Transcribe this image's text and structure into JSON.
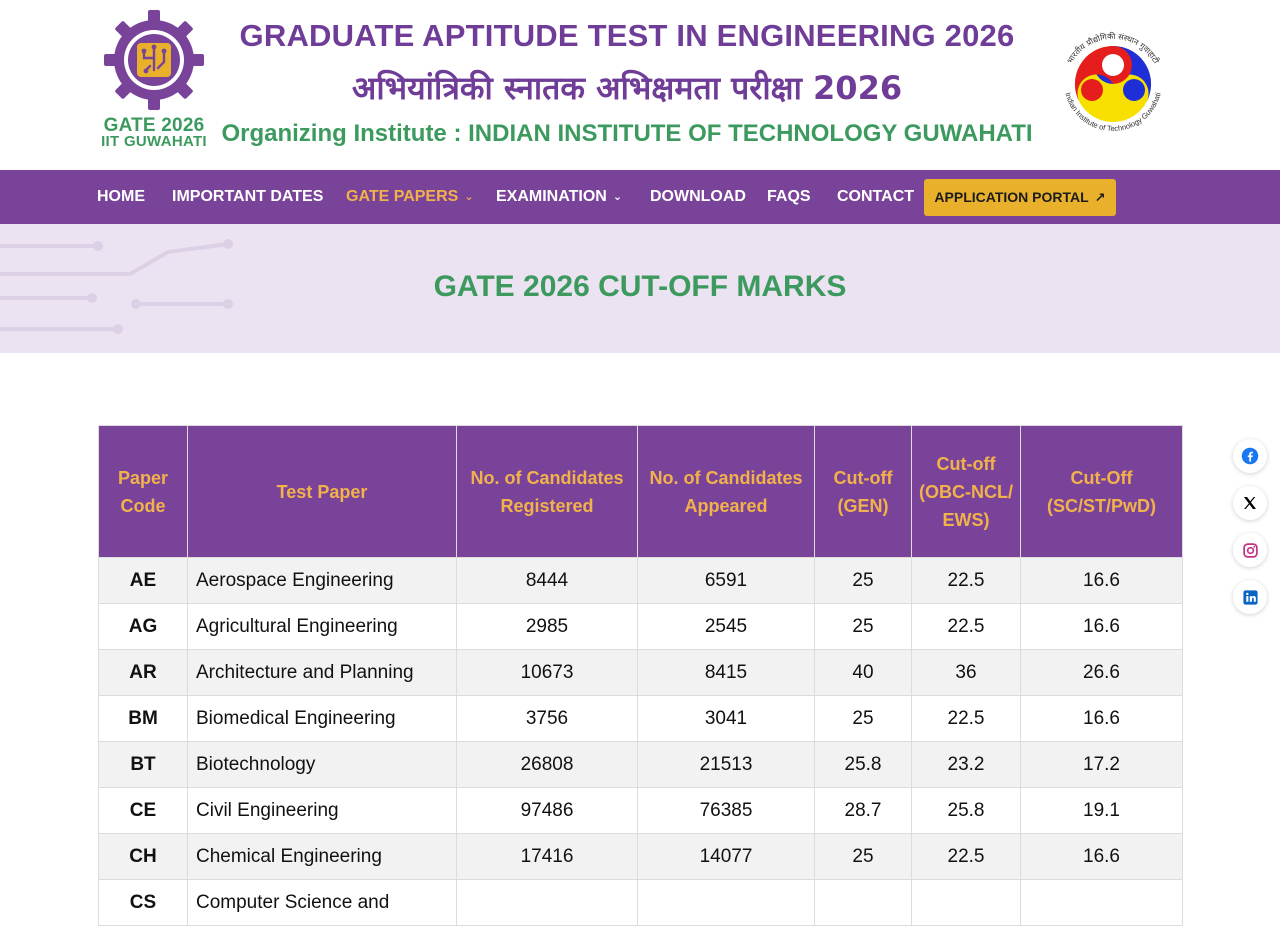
{
  "header": {
    "logo_line1": "GATE 2026",
    "logo_line2": "IIT GUWAHATI",
    "title_en": "GRADUATE APTITUDE TEST IN ENGINEERING 2026",
    "title_hi": "अभियांत्रिकी स्नातक अभिक्षमता परीक्षा 2026",
    "organizer": "Organizing Institute : INDIAN INSTITUTE OF TECHNOLOGY GUWAHATI",
    "iitg_logo_text_hi": "भारतीय प्रौद्योगिकी संस्थान गुवाहाटी",
    "iitg_logo_text_en": "Indian Institute of Technology Guwahati"
  },
  "nav": {
    "home": "HOME",
    "dates": "IMPORTANT DATES",
    "papers": "GATE PAPERS",
    "exam": "EXAMINATION",
    "download": "DOWNLOAD",
    "faqs": "FAQS",
    "contact": "CONTACT",
    "portal": "APPLICATION PORTAL"
  },
  "banner": {
    "title": "GATE 2026 CUT-OFF MARKS"
  },
  "table": {
    "headers": {
      "code": "Paper Code",
      "paper": "Test Paper",
      "registered": "No. of Candidates Registered",
      "appeared": "No. of Candidates Appeared",
      "gen": "Cut-off (GEN)",
      "obc": "Cut-off (OBC-NCL/ EWS)",
      "sc": "Cut-Off (SC/ST/PwD)"
    },
    "rows": [
      {
        "code": "AE",
        "paper": "Aerospace Engineering",
        "registered": "8444",
        "appeared": "6591",
        "gen": "25",
        "obc": "22.5",
        "sc": "16.6"
      },
      {
        "code": "AG",
        "paper": "Agricultural Engineering",
        "registered": "2985",
        "appeared": "2545",
        "gen": "25",
        "obc": "22.5",
        "sc": "16.6"
      },
      {
        "code": "AR",
        "paper": "Architecture and Planning",
        "registered": "10673",
        "appeared": "8415",
        "gen": "40",
        "obc": "36",
        "sc": "26.6"
      },
      {
        "code": "BM",
        "paper": "Biomedical Engineering",
        "registered": "3756",
        "appeared": "3041",
        "gen": "25",
        "obc": "22.5",
        "sc": "16.6"
      },
      {
        "code": "BT",
        "paper": "Biotechnology",
        "registered": "26808",
        "appeared": "21513",
        "gen": "25.8",
        "obc": "23.2",
        "sc": "17.2"
      },
      {
        "code": "CE",
        "paper": "Civil Engineering",
        "registered": "97486",
        "appeared": "76385",
        "gen": "28.7",
        "obc": "25.8",
        "sc": "19.1"
      },
      {
        "code": "CH",
        "paper": "Chemical Engineering",
        "registered": "17416",
        "appeared": "14077",
        "gen": "25",
        "obc": "22.5",
        "sc": "16.6"
      },
      {
        "code": "CS",
        "paper": "Computer Science and",
        "registered": "",
        "appeared": "",
        "gen": "",
        "obc": "",
        "sc": ""
      }
    ]
  },
  "social": [
    "facebook-icon",
    "x-icon",
    "instagram-icon",
    "linkedin-icon"
  ],
  "colors": {
    "purple": "#7a439a",
    "gold": "#f2b24b",
    "green": "#3c9a5f",
    "button": "#e9b12b",
    "banner_bg": "#ebe2f2"
  }
}
